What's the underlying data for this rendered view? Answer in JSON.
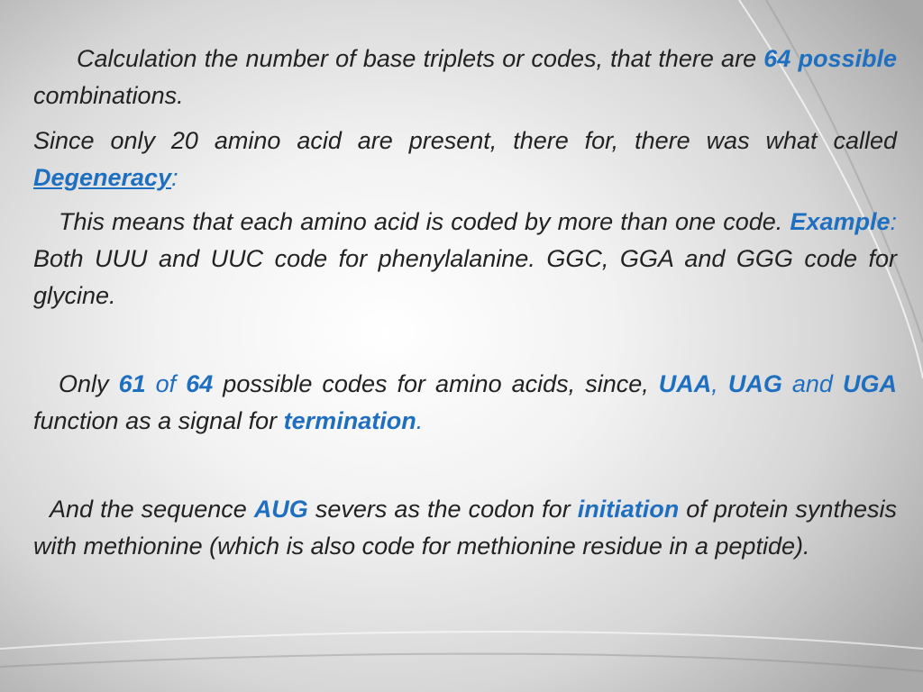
{
  "paragraphs": [
    [
      "Calculation the number of base triplets or codes, that there are ",
      "64 possible",
      " combinations."
    ],
    [
      "Since only 20 amino acid are present, there for, there was what called ",
      "Degeneracy",
      ":"
    ],
    [
      "This means that each amino acid is coded by more than one code. ",
      "Example",
      ":",
      " Both UUU and UUC code for phenylalanine. GGC, GGA and GGG code for glycine."
    ],
    [
      "Only ",
      "61",
      " of ",
      "64",
      " possible codes for amino acids, since, ",
      "UAA",
      ",",
      " ",
      "UAG",
      " and ",
      "UGA",
      " function as a signal for ",
      "termination",
      "."
    ],
    [
      "And the sequence ",
      "AUG",
      " severs as the codon for ",
      "initiation",
      " of protein synthesis with methionine (which is also code for methionine residue in a peptide)."
    ]
  ]
}
